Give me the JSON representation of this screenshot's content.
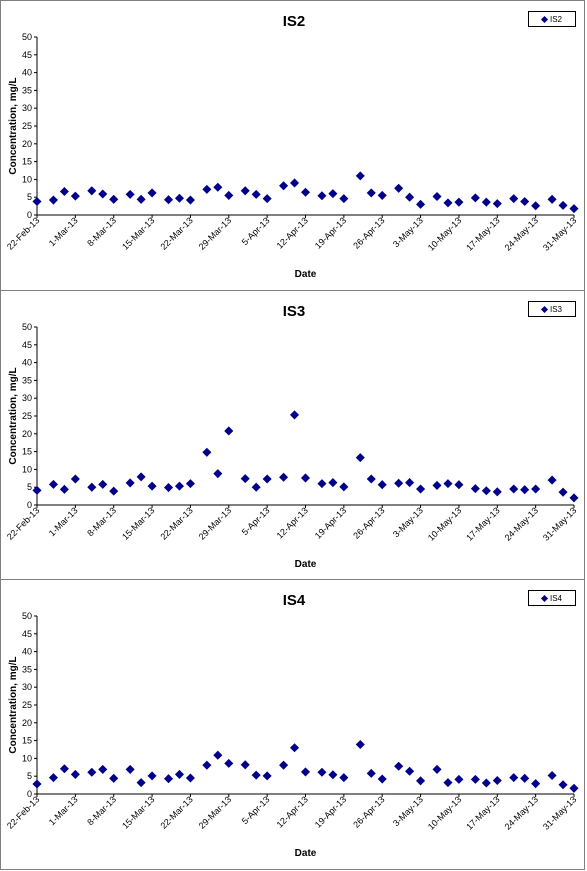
{
  "chart_data": [
    {
      "type": "scatter",
      "title": "IS2",
      "xlabel": "Date",
      "ylabel": "Concentration, mg/L",
      "ylim": [
        0,
        50
      ],
      "yticks": [
        "0",
        "5",
        "10",
        "15",
        "20",
        "25",
        "30",
        "35",
        "40",
        "45",
        "50"
      ],
      "xticks": [
        "22-Feb-13",
        "1-Mar-13",
        "8-Mar-13",
        "15-Mar-13",
        "22-Mar-13",
        "29-Mar-13",
        "5-Apr-13",
        "12-Apr-13",
        "19-Apr-13",
        "26-Apr-13",
        "3-May-13",
        "10-May-13",
        "17-May-13",
        "24-May-13",
        "31-May-13"
      ],
      "series": [
        {
          "name": "IS2",
          "color": "#00008b",
          "x": [
            "2013-02-22",
            "2013-02-25",
            "2013-02-27",
            "2013-03-01",
            "2013-03-04",
            "2013-03-06",
            "2013-03-08",
            "2013-03-11",
            "2013-03-13",
            "2013-03-15",
            "2013-03-18",
            "2013-03-20",
            "2013-03-22",
            "2013-03-25",
            "2013-03-27",
            "2013-03-29",
            "2013-04-01",
            "2013-04-03",
            "2013-04-05",
            "2013-04-08",
            "2013-04-10",
            "2013-04-12",
            "2013-04-15",
            "2013-04-17",
            "2013-04-19",
            "2013-04-22",
            "2013-04-24",
            "2013-04-26",
            "2013-04-29",
            "2013-05-01",
            "2013-05-03",
            "2013-05-06",
            "2013-05-08",
            "2013-05-10",
            "2013-05-13",
            "2013-05-15",
            "2013-05-17",
            "2013-05-20",
            "2013-05-22",
            "2013-05-24",
            "2013-05-27",
            "2013-05-29",
            "2013-05-31"
          ],
          "y": [
            3.8,
            4.2,
            6.6,
            5.3,
            6.8,
            5.9,
            4.4,
            5.8,
            4.4,
            6.2,
            4.3,
            4.7,
            4.2,
            7.2,
            7.8,
            5.5,
            6.8,
            5.8,
            4.6,
            8.2,
            9.0,
            6.4,
            5.4,
            6.0,
            4.6,
            11.0,
            6.2,
            5.5,
            7.5,
            5.0,
            3.0,
            5.2,
            3.4,
            3.6,
            4.8,
            3.6,
            3.2,
            4.6,
            3.8,
            2.6,
            4.4,
            2.7,
            1.8
          ]
        }
      ]
    },
    {
      "type": "scatter",
      "title": "IS3",
      "xlabel": "Date",
      "ylabel": "Concentration, mg/L",
      "ylim": [
        0,
        50
      ],
      "yticks": [
        "0",
        "5",
        "10",
        "15",
        "20",
        "25",
        "30",
        "35",
        "40",
        "45",
        "50"
      ],
      "xticks": [
        "22-Feb-13",
        "1-Mar-13",
        "8-Mar-13",
        "15-Mar-13",
        "22-Mar-13",
        "29-Mar-13",
        "5-Apr-13",
        "12-Apr-13",
        "19-Apr-13",
        "26-Apr-13",
        "3-May-13",
        "10-May-13",
        "17-May-13",
        "24-May-13",
        "31-May-13"
      ],
      "series": [
        {
          "name": "IS3",
          "color": "#00008b",
          "x": [
            "2013-02-22",
            "2013-02-25",
            "2013-02-27",
            "2013-03-01",
            "2013-03-04",
            "2013-03-06",
            "2013-03-08",
            "2013-03-11",
            "2013-03-13",
            "2013-03-15",
            "2013-03-18",
            "2013-03-20",
            "2013-03-22",
            "2013-03-25",
            "2013-03-27",
            "2013-03-29",
            "2013-04-01",
            "2013-04-03",
            "2013-04-05",
            "2013-04-08",
            "2013-04-10",
            "2013-04-12",
            "2013-04-15",
            "2013-04-17",
            "2013-04-19",
            "2013-04-22",
            "2013-04-24",
            "2013-04-26",
            "2013-04-29",
            "2013-05-01",
            "2013-05-03",
            "2013-05-06",
            "2013-05-08",
            "2013-05-10",
            "2013-05-13",
            "2013-05-15",
            "2013-05-17",
            "2013-05-20",
            "2013-05-22",
            "2013-05-24",
            "2013-05-27",
            "2013-05-29",
            "2013-05-31"
          ],
          "y": [
            4.1,
            5.8,
            4.4,
            7.3,
            5.0,
            5.8,
            3.9,
            6.2,
            7.9,
            5.3,
            4.9,
            5.3,
            6.0,
            14.8,
            8.8,
            20.8,
            7.4,
            5.0,
            7.3,
            7.8,
            25.3,
            7.6,
            6.0,
            6.3,
            5.1,
            13.3,
            7.3,
            5.7,
            6.1,
            6.3,
            4.5,
            5.5,
            6.0,
            5.7,
            4.6,
            4.0,
            3.7,
            4.5,
            4.3,
            4.5,
            7.0,
            3.6,
            2.0
          ]
        }
      ]
    },
    {
      "type": "scatter",
      "title": "IS4",
      "xlabel": "Date",
      "ylabel": "Concentration, mg/L",
      "ylim": [
        0,
        50
      ],
      "yticks": [
        "0",
        "5",
        "10",
        "15",
        "20",
        "25",
        "30",
        "35",
        "40",
        "45",
        "50"
      ],
      "xticks": [
        "22-Feb-13",
        "1-Mar-13",
        "8-Mar-13",
        "15-Mar-13",
        "22-Mar-13",
        "29-Mar-13",
        "5-Apr-13",
        "12-Apr-13",
        "19-Apr-13",
        "26-Apr-13",
        "3-May-13",
        "10-May-13",
        "17-May-13",
        "24-May-13",
        "31-May-13"
      ],
      "series": [
        {
          "name": "IS4",
          "color": "#00008b",
          "x": [
            "2013-02-22",
            "2013-02-25",
            "2013-02-27",
            "2013-03-01",
            "2013-03-04",
            "2013-03-06",
            "2013-03-08",
            "2013-03-11",
            "2013-03-13",
            "2013-03-15",
            "2013-03-18",
            "2013-03-20",
            "2013-03-22",
            "2013-03-25",
            "2013-03-27",
            "2013-03-29",
            "2013-04-01",
            "2013-04-03",
            "2013-04-05",
            "2013-04-08",
            "2013-04-10",
            "2013-04-12",
            "2013-04-15",
            "2013-04-17",
            "2013-04-19",
            "2013-04-22",
            "2013-04-24",
            "2013-04-26",
            "2013-04-29",
            "2013-05-01",
            "2013-05-03",
            "2013-05-06",
            "2013-05-08",
            "2013-05-10",
            "2013-05-13",
            "2013-05-15",
            "2013-05-17",
            "2013-05-20",
            "2013-05-22",
            "2013-05-24",
            "2013-05-27",
            "2013-05-29",
            "2013-05-31"
          ],
          "y": [
            2.8,
            4.6,
            7.1,
            5.5,
            6.1,
            6.9,
            4.4,
            6.9,
            3.2,
            5.1,
            4.3,
            5.5,
            4.5,
            8.1,
            10.9,
            8.6,
            8.2,
            5.3,
            5.1,
            8.1,
            13.0,
            6.2,
            6.1,
            5.4,
            4.6,
            13.9,
            5.8,
            4.2,
            7.8,
            6.4,
            3.7,
            6.9,
            3.2,
            4.1,
            4.1,
            3.1,
            3.8,
            4.6,
            4.4,
            2.9,
            5.2,
            2.6,
            1.6
          ]
        }
      ]
    }
  ]
}
